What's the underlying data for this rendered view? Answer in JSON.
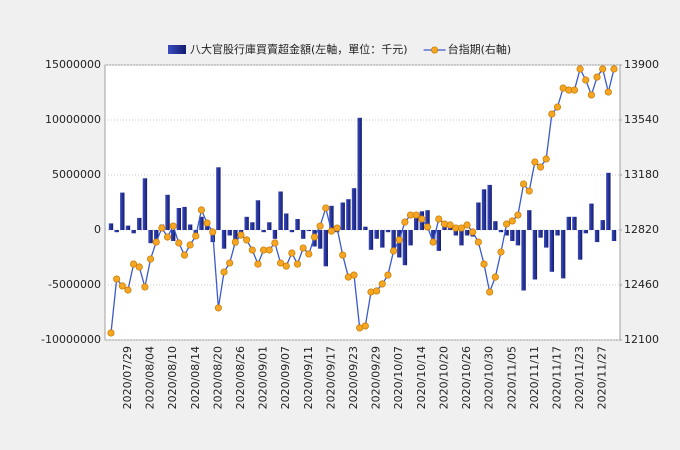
{
  "chart_data": {
    "type": "combo",
    "categories": [
      null,
      null,
      null,
      "2020/07/29",
      null,
      null,
      null,
      "2020/08/04",
      null,
      null,
      null,
      "2020/08/10",
      null,
      null,
      null,
      "2020/08/14",
      null,
      null,
      null,
      "2020/08/20",
      null,
      null,
      null,
      "2020/08/26",
      null,
      null,
      null,
      "2020/09/01",
      null,
      null,
      null,
      "2020/09/07",
      null,
      null,
      null,
      "2020/09/11",
      null,
      null,
      null,
      "2020/09/17",
      null,
      null,
      null,
      "2020/09/23",
      null,
      null,
      null,
      "2020/09/29",
      null,
      null,
      null,
      "2020/10/07",
      null,
      null,
      null,
      "2020/10/14",
      null,
      null,
      null,
      "2020/10/20",
      null,
      null,
      null,
      "2020/10/26",
      null,
      null,
      null,
      "2020/10/30",
      null,
      null,
      null,
      "2020/11/05",
      null,
      null,
      null,
      "2020/11/11",
      null,
      null,
      null,
      "2020/11/17",
      null,
      null,
      null,
      "2020/11/23",
      null,
      null,
      null,
      "2020/11/27",
      null,
      null
    ],
    "series": [
      {
        "name": "八大官股行庫買賣超金額(左軸，單位：千元)",
        "type": "bar",
        "color": "#1f2b8c",
        "values": [
          600000,
          -200000,
          3400000,
          400000,
          -300000,
          1100000,
          4700000,
          -1200000,
          -1100000,
          500000,
          3200000,
          -1000000,
          2000000,
          2100000,
          500000,
          -400000,
          1200000,
          800000,
          -1100000,
          5700000,
          -1700000,
          -500000,
          -1400000,
          -600000,
          1200000,
          700000,
          2700000,
          -200000,
          700000,
          -800000,
          3500000,
          1500000,
          -200000,
          1000000,
          -800000,
          -100000,
          -1500000,
          -1700000,
          -3300000,
          2200000,
          -200000,
          2500000,
          2800000,
          3800000,
          10200000,
          300000,
          -1800000,
          -800000,
          -1600000,
          -200000,
          -1800000,
          -2500000,
          -3200000,
          -1400000,
          1500000,
          1700000,
          1800000,
          -800000,
          -1900000,
          700000,
          400000,
          -500000,
          -1400000,
          -500000,
          -600000,
          2500000,
          3700000,
          4100000,
          800000,
          -200000,
          -500000,
          -1000000,
          -1400000,
          -5500000,
          1800000,
          -4500000,
          -700000,
          -1600000,
          -3800000,
          -500000,
          -4400000,
          1200000,
          1200000,
          -2700000,
          -300000,
          2400000,
          -1100000,
          900000,
          5200000,
          -1000000
        ]
      },
      {
        "name": "台指期(右軸)",
        "type": "line",
        "axis": "y2",
        "color": "#3b5bcc",
        "marker_color": "#f5a623",
        "values": [
          12146,
          12499,
          12454,
          12427,
          12597,
          12578,
          12447,
          12630,
          12741,
          12833,
          12774,
          12846,
          12735,
          12656,
          12722,
          12781,
          12951,
          12866,
          12807,
          12310,
          12545,
          12604,
          12741,
          12787,
          12755,
          12689,
          12597,
          12689,
          12689,
          12735,
          12604,
          12584,
          12669,
          12597,
          12702,
          12663,
          12774,
          12846,
          12964,
          12813,
          12833,
          12656,
          12512,
          12525,
          12179,
          12192,
          12414,
          12421,
          12467,
          12525,
          12683,
          12755,
          12872,
          12918,
          12918,
          12892,
          12840,
          12741,
          12892,
          12859,
          12853,
          12833,
          12833,
          12853,
          12807,
          12741,
          12597,
          12414,
          12512,
          12676,
          12859,
          12879,
          12918,
          13121,
          13075,
          13265,
          13232,
          13285,
          13579,
          13625,
          13749,
          13736,
          13736,
          13874,
          13802,
          13704,
          13821,
          13874,
          13723,
          13874
        ]
      }
    ],
    "ylim": [
      -10000000,
      15000000
    ],
    "yticks": [
      -10000000,
      -5000000,
      0,
      5000000,
      10000000,
      15000000
    ],
    "y2lim": [
      12100,
      13900
    ],
    "y2ticks": [
      12100,
      12460,
      12820,
      13180,
      13540,
      13900
    ],
    "grid": true,
    "legend": "top"
  }
}
